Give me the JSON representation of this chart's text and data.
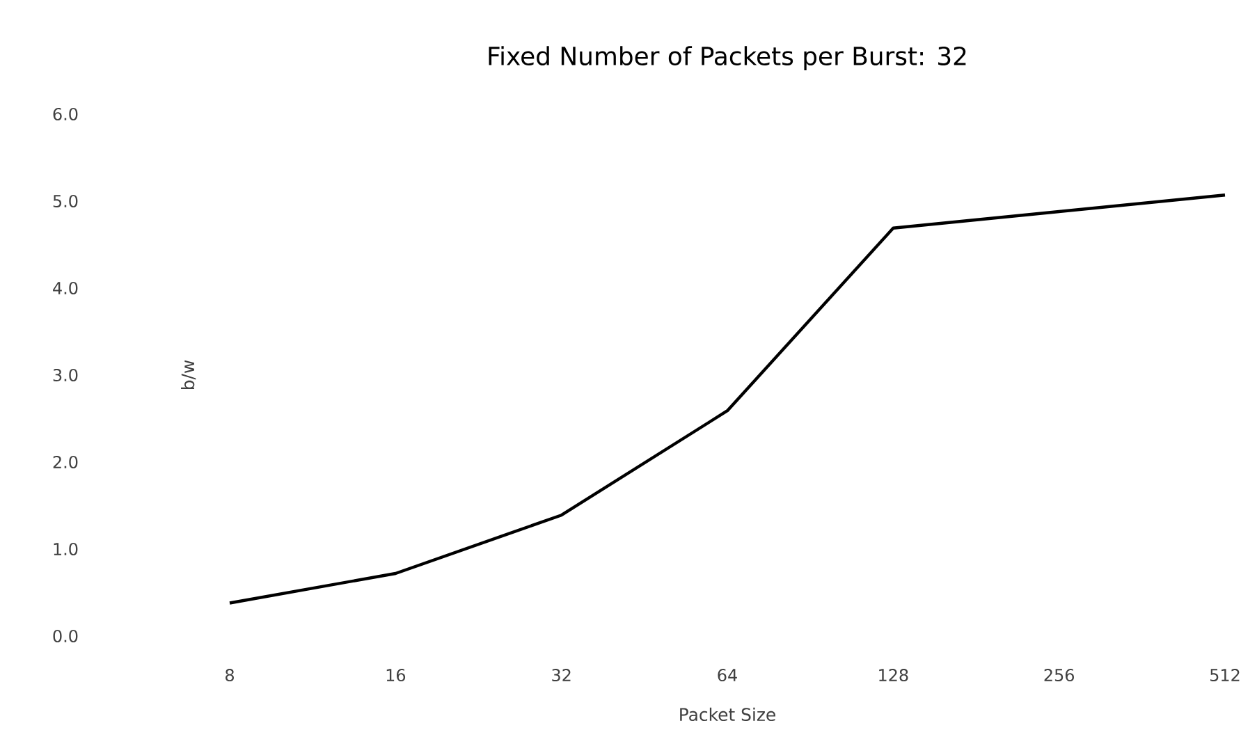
{
  "chart_data": {
    "type": "line",
    "title": "Fixed Number of Packets per Burst: 32",
    "xlabel": "Packet Size",
    "ylabel": "b/w",
    "categories": [
      "8",
      "16",
      "32",
      "64",
      "128",
      "256",
      "512"
    ],
    "series": [
      {
        "color": "#000000",
        "values": [
          0.38,
          0.72,
          1.39,
          2.59,
          4.69,
          4.88,
          5.07
        ]
      }
    ],
    "ylim": [
      0,
      6
    ],
    "yticks": [
      {
        "value": 0,
        "label": "0.0"
      },
      {
        "value": 1,
        "label": "1.0"
      },
      {
        "value": 2,
        "label": "2.0"
      },
      {
        "value": 3,
        "label": "3.0"
      },
      {
        "value": 4,
        "label": "4.0"
      },
      {
        "value": 5,
        "label": "5.0"
      },
      {
        "value": 6,
        "label": "6.0"
      }
    ],
    "marker": "none",
    "line_style": "solid"
  }
}
